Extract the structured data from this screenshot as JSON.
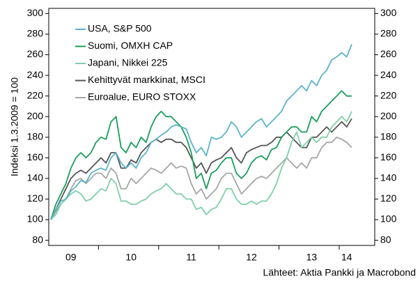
{
  "chart_data": {
    "type": "line",
    "y_label": "Indeksi 1.3.2009 = 100",
    "source": "Lähteet: Aktia Pankki ja Macrobond",
    "categories": [
      null,
      null,
      null,
      null,
      "09",
      null,
      null,
      null,
      null,
      null,
      null,
      null,
      null,
      null,
      null,
      null,
      "10",
      null,
      null,
      null,
      null,
      null,
      null,
      null,
      null,
      null,
      null,
      null,
      "11",
      null,
      null,
      null,
      null,
      null,
      null,
      null,
      null,
      null,
      null,
      null,
      "12",
      null,
      null,
      null,
      null,
      null,
      null,
      null,
      null,
      null,
      null,
      null,
      "13",
      null,
      null,
      null,
      null,
      null,
      null,
      "14",
      null
    ],
    "series": [
      {
        "name": "USA, S&P 500",
        "color": "#5ab4c8",
        "values": [
          100,
          110,
          118,
          120,
          128,
          132,
          138,
          136,
          145,
          148,
          150,
          148,
          160,
          165,
          155,
          150,
          155,
          150,
          160,
          165,
          175,
          178,
          182,
          185,
          190,
          192,
          190,
          188,
          175,
          165,
          170,
          162,
          180,
          178,
          180,
          185,
          195,
          190,
          180,
          185,
          190,
          195,
          198,
          190,
          195,
          200,
          205,
          215,
          220,
          225,
          230,
          225,
          235,
          230,
          240,
          245,
          255,
          258,
          262,
          258,
          270
        ]
      },
      {
        "name": "Suomi, OMXH CAP",
        "color": "#1a9e5c",
        "values": [
          100,
          115,
          125,
          135,
          150,
          160,
          165,
          160,
          165,
          175,
          180,
          178,
          195,
          200,
          170,
          165,
          175,
          170,
          180,
          175,
          190,
          200,
          205,
          200,
          200,
          195,
          190,
          180,
          165,
          140,
          145,
          130,
          145,
          148,
          155,
          160,
          160,
          145,
          140,
          145,
          155,
          160,
          162,
          158,
          168,
          170,
          180,
          185,
          190,
          190,
          185,
          185,
          200,
          195,
          205,
          210,
          215,
          220,
          225,
          220,
          220
        ]
      },
      {
        "name": "Japani, Nikkei 225",
        "color": "#7fcfa8",
        "values": [
          100,
          105,
          115,
          120,
          125,
          128,
          125,
          118,
          120,
          125,
          130,
          128,
          140,
          135,
          118,
          118,
          115,
          115,
          118,
          120,
          125,
          128,
          130,
          135,
          130,
          125,
          125,
          120,
          120,
          110,
          112,
          105,
          110,
          112,
          120,
          130,
          130,
          120,
          115,
          115,
          118,
          115,
          118,
          118,
          125,
          135,
          150,
          160,
          175,
          185,
          170,
          175,
          180,
          175,
          180,
          180,
          190,
          195,
          200,
          195,
          205
        ]
      },
      {
        "name": "Kehittyvät markkinat, MSCI",
        "color": "#555555",
        "values": [
          100,
          110,
          120,
          130,
          140,
          145,
          148,
          145,
          150,
          155,
          160,
          155,
          165,
          165,
          150,
          150,
          158,
          155,
          165,
          170,
          175,
          178,
          175,
          178,
          178,
          175,
          175,
          170,
          160,
          150,
          155,
          145,
          155,
          158,
          160,
          165,
          170,
          160,
          155,
          165,
          168,
          170,
          172,
          172,
          175,
          180,
          180,
          185,
          180,
          175,
          170,
          170,
          180,
          180,
          185,
          190,
          185,
          190,
          195,
          190,
          198
        ]
      },
      {
        "name": "Euroalue, EURO STOXX",
        "color": "#a6a6a6",
        "values": [
          100,
          108,
          115,
          120,
          130,
          138,
          140,
          135,
          140,
          145,
          145,
          140,
          150,
          145,
          130,
          130,
          140,
          135,
          140,
          145,
          150,
          148,
          145,
          150,
          155,
          150,
          152,
          150,
          135,
          125,
          130,
          120,
          125,
          130,
          140,
          145,
          145,
          135,
          125,
          130,
          135,
          140,
          142,
          140,
          145,
          150,
          155,
          160,
          155,
          150,
          155,
          150,
          160,
          160,
          170,
          175,
          175,
          180,
          178,
          175,
          170
        ]
      }
    ],
    "ylim": [
      75,
      305
    ],
    "yticks": [
      80,
      100,
      120,
      140,
      160,
      180,
      200,
      220,
      240,
      260,
      280,
      300
    ],
    "y2lim": [
      75,
      305
    ],
    "y2ticks": [
      80,
      100,
      120,
      140,
      160,
      180,
      200,
      220,
      240,
      260,
      280,
      300
    ],
    "legend": "top-left"
  }
}
